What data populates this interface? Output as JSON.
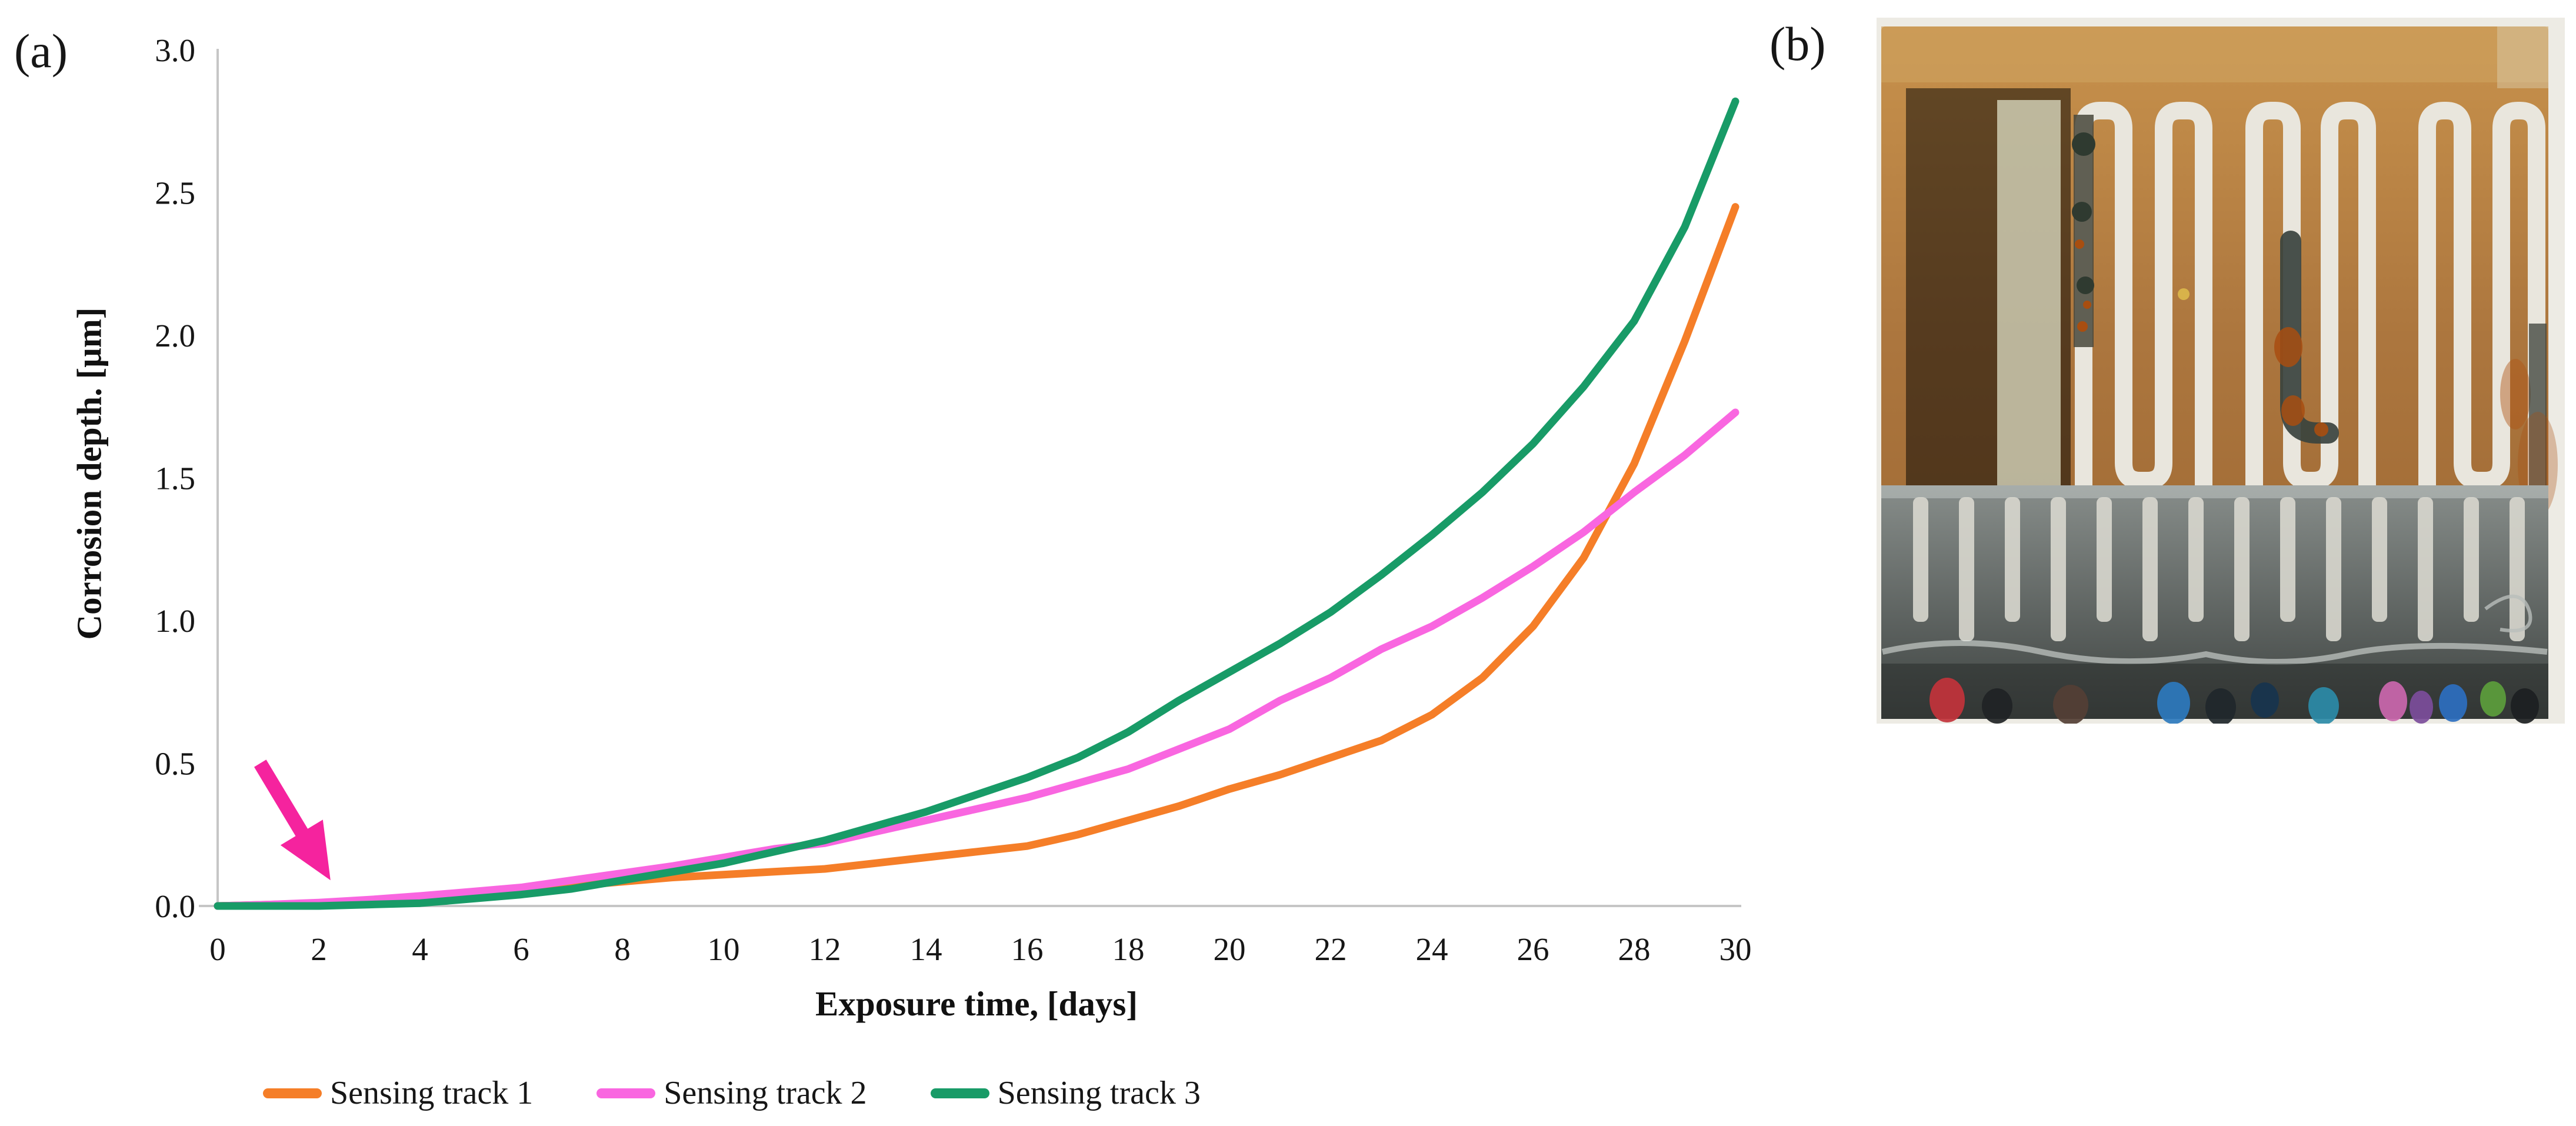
{
  "figure": {
    "panel_a_label": "(a)",
    "panel_b_label": "(b)"
  },
  "chart_data": {
    "type": "line",
    "title": "",
    "xlabel": "Exposure time, [days]",
    "ylabel": "Corrosion depth. [μm]",
    "xlim": [
      0,
      30
    ],
    "ylim": [
      0.0,
      3.0
    ],
    "x_ticks": [
      0,
      2,
      4,
      6,
      8,
      10,
      12,
      14,
      16,
      18,
      20,
      22,
      24,
      26,
      28,
      30
    ],
    "y_ticks": [
      "0.0",
      "0.5",
      "1.0",
      "1.5",
      "2.0",
      "2.5",
      "3.0"
    ],
    "grid": false,
    "legend_position": "bottom",
    "axis_color": "#c6c6c6",
    "x": [
      0,
      1,
      2,
      3,
      4,
      5,
      6,
      7,
      8,
      9,
      10,
      11,
      12,
      13,
      14,
      15,
      16,
      17,
      18,
      19,
      20,
      21,
      22,
      23,
      24,
      25,
      26,
      27,
      28,
      29,
      30
    ],
    "series": [
      {
        "name": "Sensing track 1",
        "color": "#F57E28",
        "values": [
          0,
          0.005,
          0.01,
          0.02,
          0.03,
          0.045,
          0.055,
          0.07,
          0.085,
          0.1,
          0.11,
          0.12,
          0.13,
          0.15,
          0.17,
          0.19,
          0.21,
          0.25,
          0.3,
          0.35,
          0.41,
          0.46,
          0.52,
          0.58,
          0.67,
          0.8,
          0.98,
          1.22,
          1.55,
          1.98,
          2.45
        ]
      },
      {
        "name": "Sensing track 2",
        "color": "#F966E0",
        "values": [
          0,
          0.005,
          0.012,
          0.022,
          0.035,
          0.05,
          0.065,
          0.09,
          0.115,
          0.14,
          0.17,
          0.2,
          0.22,
          0.26,
          0.3,
          0.34,
          0.38,
          0.43,
          0.48,
          0.55,
          0.62,
          0.72,
          0.8,
          0.9,
          0.98,
          1.08,
          1.19,
          1.31,
          1.45,
          1.58,
          1.73
        ]
      },
      {
        "name": "Sensing track 3",
        "color": "#189B67",
        "values": [
          0,
          0,
          0,
          0.005,
          0.01,
          0.025,
          0.04,
          0.06,
          0.09,
          0.12,
          0.15,
          0.19,
          0.23,
          0.28,
          0.33,
          0.39,
          0.45,
          0.52,
          0.61,
          0.72,
          0.82,
          0.92,
          1.03,
          1.16,
          1.3,
          1.45,
          1.62,
          1.82,
          2.05,
          2.38,
          2.82
        ]
      }
    ],
    "annotation": {
      "type": "arrow",
      "color": "#F5239E",
      "from_day": 0.84,
      "from_value": 0.5,
      "to_day": 2.23,
      "to_value": 0.09
    }
  },
  "photo": {
    "palette": {
      "backdrop": "#EDEBE4",
      "amber_top": "#C8924C",
      "amber_mid": "#AC763E",
      "amber_deep": "#9A6530",
      "silver": "#E9E6DD",
      "pale_strip": "#D6D8BD",
      "dark_corrosion": "#39433E",
      "rust": "#A84E10",
      "band_light": "#878D8A",
      "band_dark": "#3E4341",
      "finger": "#D8D7CE"
    },
    "connector": {
      "finger_count": 14
    },
    "wire_colors": [
      "#C2333B",
      "#1F2325",
      "#543F35",
      "#2C79BE",
      "#20272B",
      "#17344E",
      "#2B8BA8",
      "#CB67AE",
      "#7C4D9B",
      "#2C6FC0",
      "#5C9E3C",
      "#1C2022"
    ]
  }
}
